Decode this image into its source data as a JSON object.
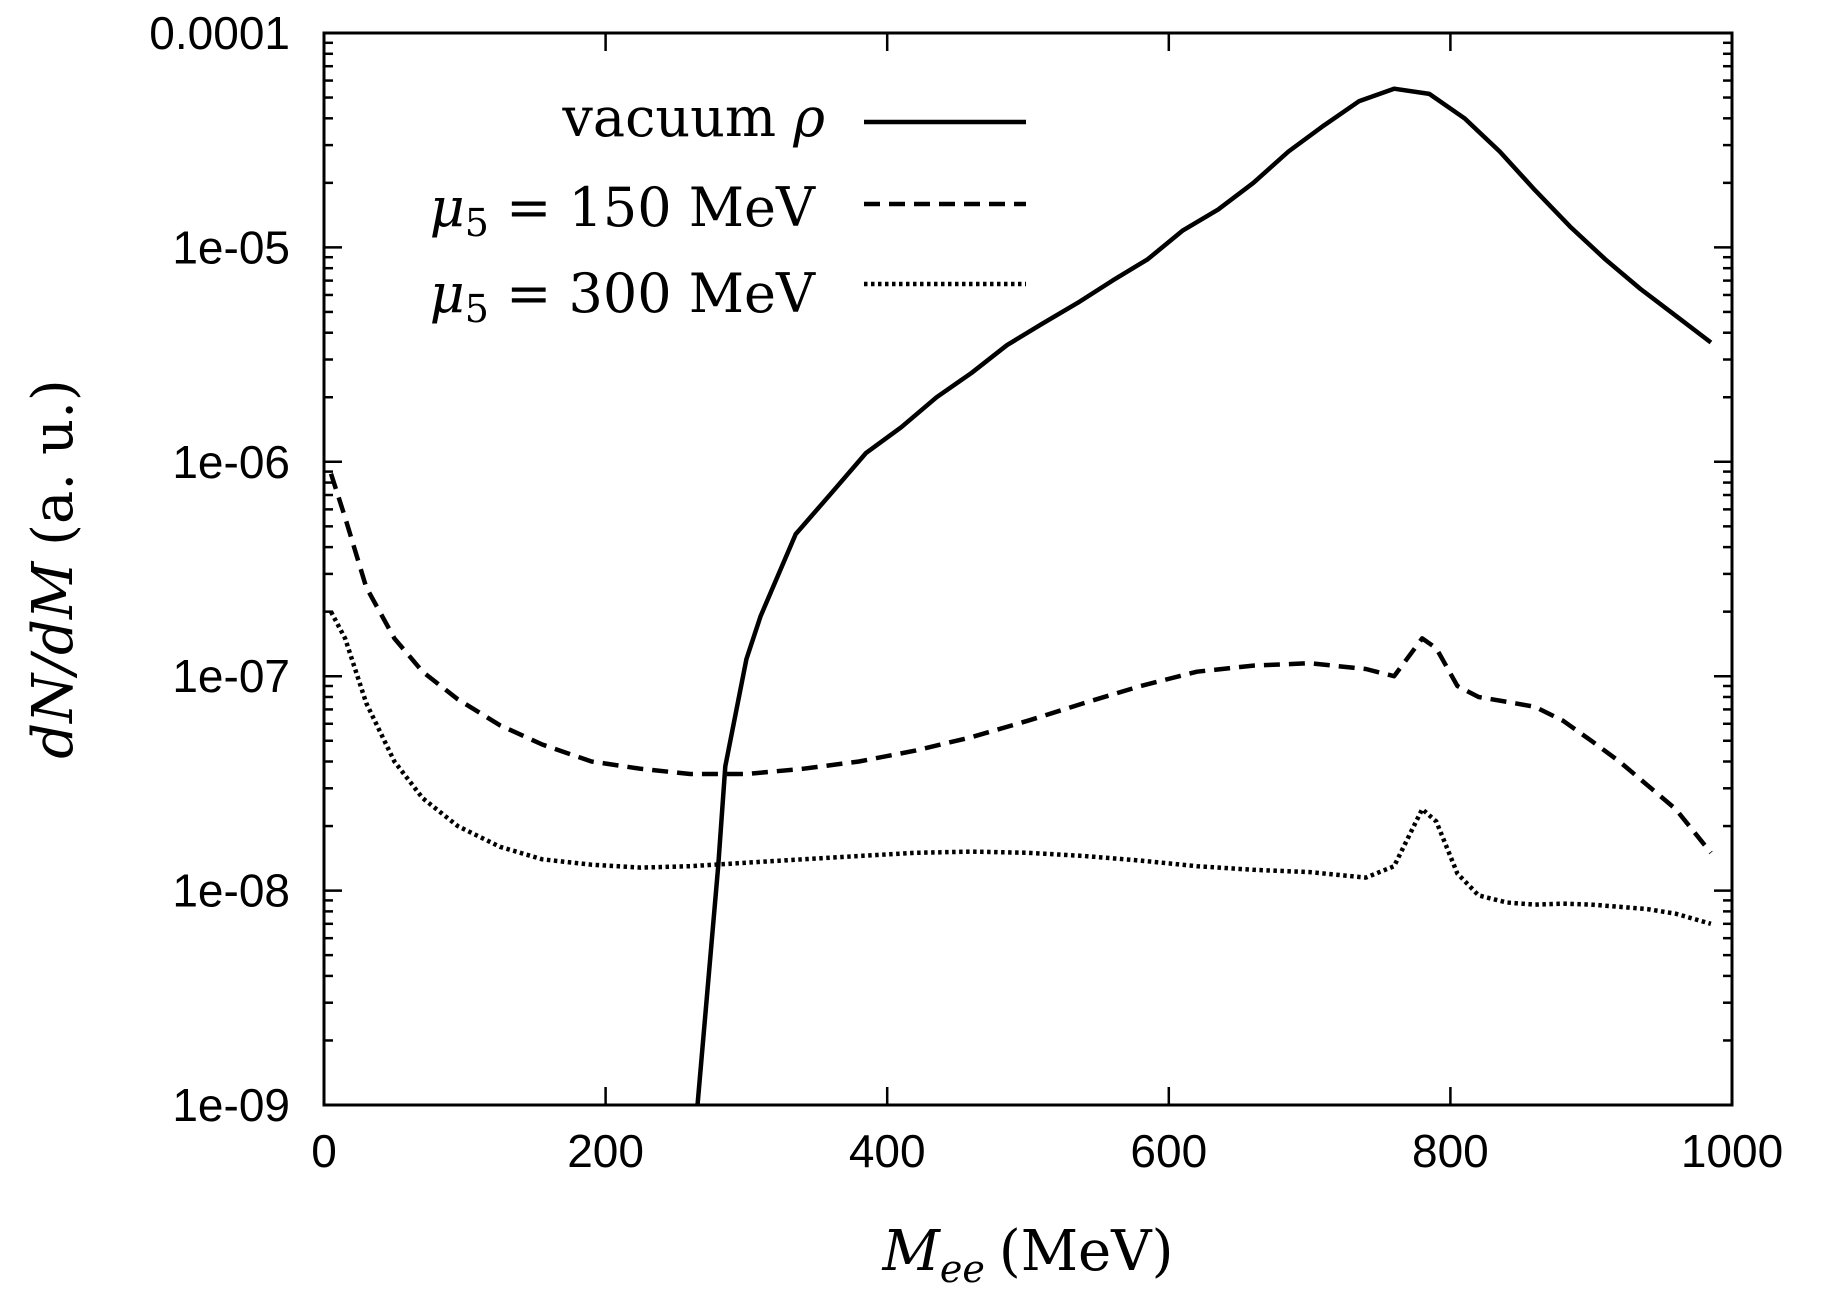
{
  "chart_data": {
    "type": "line",
    "title": "",
    "xlabel": {
      "symbol": "M",
      "subscript": "ee",
      "unit": "(MeV)"
    },
    "ylabel": {
      "math": "dN/dM",
      "unit": "(a. u.)"
    },
    "xlim": [
      0,
      1000
    ],
    "ylim": [
      1e-09,
      0.0001
    ],
    "yscale": "log",
    "grid": false,
    "legend_position": "top-left",
    "x_ticks": [
      "0",
      "200",
      "400",
      "600",
      "800",
      "1000"
    ],
    "y_ticks": [
      "1e-09",
      "1e-08",
      "1e-07",
      "1e-06",
      "1e-05",
      "0.0001"
    ],
    "series": [
      {
        "name": "vacuum ρ",
        "legend": {
          "text": "vacuum ",
          "symbol": "ρ"
        },
        "style": "solid",
        "x": [
          265,
          280,
          285,
          300,
          310,
          335,
          360,
          385,
          410,
          435,
          460,
          485,
          510,
          535,
          560,
          585,
          610,
          635,
          660,
          685,
          710,
          735,
          760,
          785,
          810,
          835,
          860,
          885,
          910,
          935,
          960,
          985
        ],
        "y": [
          9.5e-10,
          1.3e-08,
          3.8e-08,
          1.2e-07,
          1.9e-07,
          4.6e-07,
          7.1e-07,
          1.1e-06,
          1.45e-06,
          2e-06,
          2.6e-06,
          3.5e-06,
          4.4e-06,
          5.5e-06,
          7e-06,
          8.8e-06,
          1.2e-05,
          1.5e-05,
          2e-05,
          2.8e-05,
          3.7e-05,
          4.8e-05,
          5.5e-05,
          5.2e-05,
          4e-05,
          2.8e-05,
          1.85e-05,
          1.25e-05,
          8.8e-06,
          6.4e-06,
          4.8e-06,
          3.6e-06
        ]
      },
      {
        "name": "μ5 = 150 MeV",
        "legend": {
          "symbol": "μ",
          "sub": "5",
          "text": " = 150 MeV"
        },
        "style": "dashed",
        "x": [
          5,
          15,
          30,
          50,
          70,
          95,
          125,
          155,
          190,
          225,
          260,
          300,
          340,
          380,
          420,
          460,
          500,
          540,
          580,
          620,
          660,
          700,
          740,
          760,
          780,
          790,
          805,
          820,
          840,
          860,
          880,
          900,
          920,
          940,
          960,
          985
        ],
        "y": [
          8.8e-07,
          5.5e-07,
          2.6e-07,
          1.5e-07,
          1.05e-07,
          7.8e-08,
          5.9e-08,
          4.8e-08,
          4e-08,
          3.7e-08,
          3.5e-08,
          3.5e-08,
          3.7e-08,
          4e-08,
          4.5e-08,
          5.2e-08,
          6.2e-08,
          7.5e-08,
          9e-08,
          1.05e-07,
          1.12e-07,
          1.15e-07,
          1.08e-07,
          1e-07,
          1.5e-07,
          1.35e-07,
          9e-08,
          8e-08,
          7.6e-08,
          7.2e-08,
          6.2e-08,
          5e-08,
          4e-08,
          3.1e-08,
          2.4e-08,
          1.5e-08
        ]
      },
      {
        "name": "μ5 = 300 MeV",
        "legend": {
          "symbol": "μ",
          "sub": "5",
          "text": " = 300 MeV"
        },
        "style": "dotted",
        "x": [
          5,
          15,
          30,
          50,
          70,
          95,
          125,
          155,
          190,
          225,
          260,
          300,
          340,
          380,
          420,
          460,
          500,
          540,
          580,
          620,
          660,
          700,
          740,
          760,
          780,
          790,
          805,
          820,
          840,
          860,
          880,
          900,
          920,
          940,
          960,
          985
        ],
        "y": [
          2e-07,
          1.5e-07,
          7.5e-08,
          4e-08,
          2.7e-08,
          2e-08,
          1.6e-08,
          1.4e-08,
          1.32e-08,
          1.28e-08,
          1.3e-08,
          1.35e-08,
          1.4e-08,
          1.45e-08,
          1.5e-08,
          1.52e-08,
          1.5e-08,
          1.45e-08,
          1.38e-08,
          1.3e-08,
          1.25e-08,
          1.22e-08,
          1.15e-08,
          1.3e-08,
          2.4e-08,
          2.1e-08,
          1.2e-08,
          9.5e-09,
          8.8e-09,
          8.6e-09,
          8.7e-09,
          8.6e-09,
          8.4e-09,
          8.2e-09,
          7.8e-09,
          7e-09
        ]
      }
    ]
  }
}
